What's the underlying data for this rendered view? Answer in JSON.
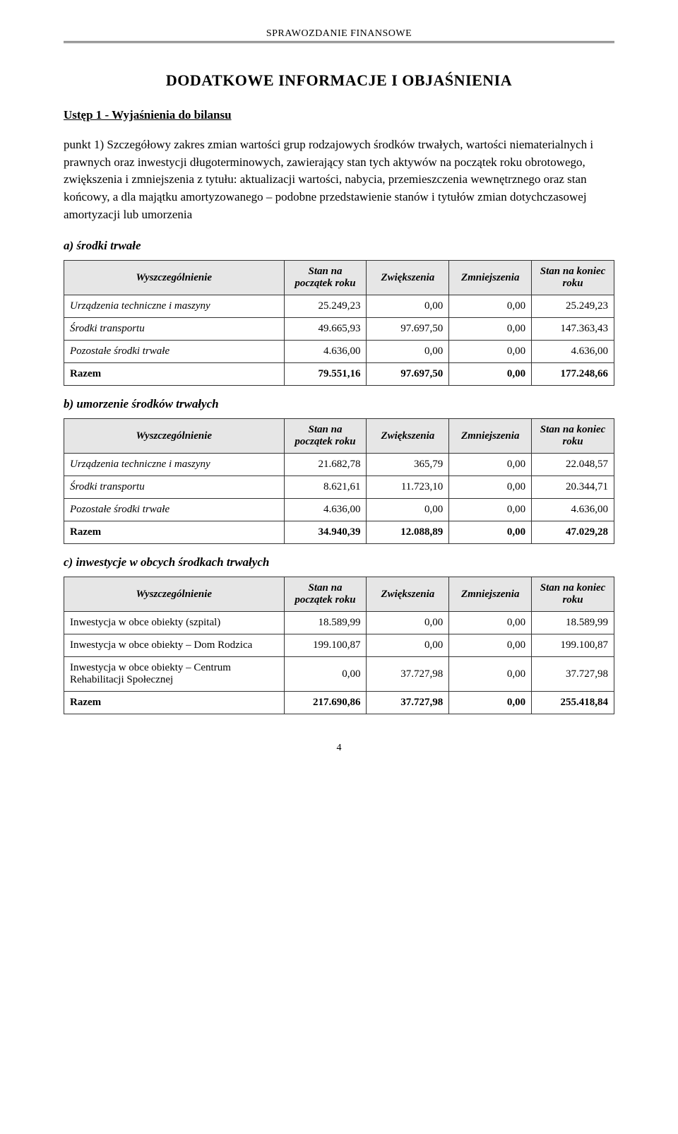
{
  "header": {
    "doc_title": "SPRAWOZDANIE FINANSOWE"
  },
  "title": "DODATKOWE  INFORMACJE I OBJAŚNIENIA",
  "section_title": "Ustęp 1 - Wyjaśnienia do bilansu",
  "intro": "punkt 1) Szczegółowy zakres zmian wartości grup rodzajowych środków trwałych, wartości niematerialnych i prawnych oraz inwestycji długoterminowych, zawierający stan tych aktywów na początek roku obrotowego, zwiększenia i zmniejszenia z tytułu: aktualizacji wartości, nabycia, przemieszczenia wewnętrznego oraz stan końcowy, a dla majątku amortyzowanego – podobne przedstawienie stanów i tytułów zmian dotychczasowej amortyzacji lub umorzenia",
  "columns": {
    "c0": "Wyszczególnienie",
    "c1": "Stan na początek roku",
    "c2": "Zwiększenia",
    "c3": "Zmniejszenia",
    "c4": "Stan na koniec roku"
  },
  "table_a": {
    "caption": "a) środki trwałe",
    "rows": [
      {
        "label": "Urządzenia techniczne i maszyny",
        "c1": "25.249,23",
        "c2": "0,00",
        "c3": "0,00",
        "c4": "25.249,23",
        "italic": true
      },
      {
        "label": "Środki transportu",
        "c1": "49.665,93",
        "c2": "97.697,50",
        "c3": "0,00",
        "c4": "147.363,43",
        "italic": true
      },
      {
        "label": "Pozostałe środki trwałe",
        "c1": "4.636,00",
        "c2": "0,00",
        "c3": "0,00",
        "c4": "4.636,00",
        "italic": true
      },
      {
        "label": "Razem",
        "c1": "79.551,16",
        "c2": "97.697,50",
        "c3": "0,00",
        "c4": "177.248,66",
        "total": true
      }
    ]
  },
  "table_b": {
    "caption": "b) umorzenie środków trwałych",
    "rows": [
      {
        "label": "Urządzenia techniczne i maszyny",
        "c1": "21.682,78",
        "c2": "365,79",
        "c3": "0,00",
        "c4": "22.048,57",
        "italic": true
      },
      {
        "label": "Środki transportu",
        "c1": "8.621,61",
        "c2": "11.723,10",
        "c3": "0,00",
        "c4": "20.344,71",
        "italic": true
      },
      {
        "label": "Pozostałe środki trwałe",
        "c1": "4.636,00",
        "c2": "0,00",
        "c3": "0,00",
        "c4": "4.636,00",
        "italic": true
      },
      {
        "label": "Razem",
        "c1": "34.940,39",
        "c2": "12.088,89",
        "c3": "0,00",
        "c4": "47.029,28",
        "total": true
      }
    ]
  },
  "table_c": {
    "caption": "c) inwestycje w obcych środkach trwałych",
    "rows": [
      {
        "label": "Inwestycja w obce obiekty (szpital)",
        "c1": "18.589,99",
        "c2": "0,00",
        "c3": "0,00",
        "c4": "18.589,99"
      },
      {
        "label": "Inwestycja w obce obiekty – Dom Rodzica",
        "c1": "199.100,87",
        "c2": "0,00",
        "c3": "0,00",
        "c4": "199.100,87"
      },
      {
        "label": "Inwestycja w obce obiekty – Centrum Rehabilitacji Społecznej",
        "c1": "0,00",
        "c2": "37.727,98",
        "c3": "0,00",
        "c4": "37.727,98"
      },
      {
        "label": "Razem",
        "c1": "217.690,86",
        "c2": "37.727,98",
        "c3": "0,00",
        "c4": "255.418,84",
        "total": true
      }
    ]
  },
  "page_number": "4",
  "style": {
    "header_bg": "#e6e6e6",
    "border_color": "#333333",
    "font_family": "Times New Roman"
  }
}
